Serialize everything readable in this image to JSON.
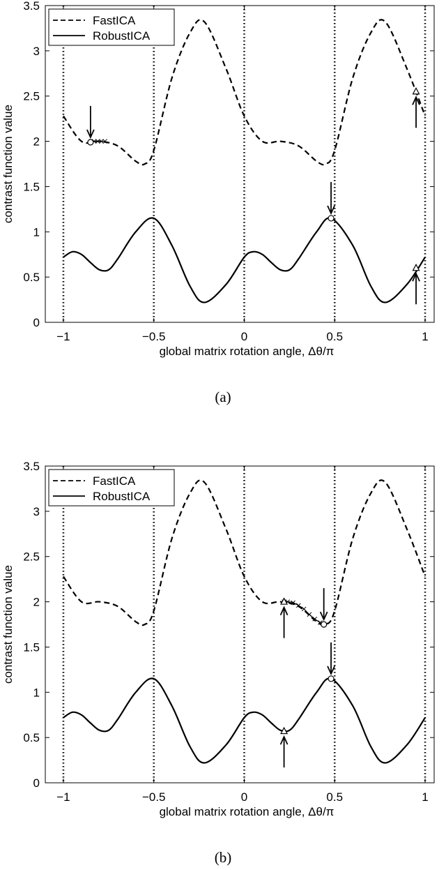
{
  "chart_data": [
    {
      "type": "line",
      "caption": "(a)",
      "xlabel": "global matrix rotation angle, Δθ/π",
      "ylabel": "contrast function value",
      "xlim": [
        -1.1,
        1.05
      ],
      "ylim": [
        0,
        3.5
      ],
      "xticks": [
        -1,
        -0.5,
        0,
        0.5,
        1
      ],
      "xtick_labels": [
        "−1",
        "−0.5",
        "0",
        "0.5",
        "1"
      ],
      "yticks": [
        0,
        0.5,
        1,
        1.5,
        2,
        2.5,
        3,
        3.5
      ],
      "ytick_labels": [
        "0",
        "0.5",
        "1",
        "1.5",
        "2",
        "2.5",
        "3",
        "3.5"
      ],
      "grid": "vertical dotted",
      "legend": "top-left",
      "series": [
        {
          "name": "FastICA",
          "style": "dashed",
          "x": [
            -1,
            -0.9,
            -0.8,
            -0.7,
            -0.6,
            -0.55,
            -0.5,
            -0.4,
            -0.3,
            -0.22,
            -0.1,
            0,
            0.1,
            0.2,
            0.3,
            0.4,
            0.45,
            0.5,
            0.6,
            0.7,
            0.78,
            0.9,
            1
          ],
          "values": [
            2.28,
            2.0,
            2.0,
            1.95,
            1.78,
            1.75,
            1.9,
            2.7,
            3.2,
            3.32,
            2.8,
            2.28,
            2.0,
            2.0,
            1.95,
            1.78,
            1.75,
            1.9,
            2.7,
            3.2,
            3.32,
            2.8,
            2.28
          ]
        },
        {
          "name": "RobustICA",
          "style": "solid",
          "x": [
            -1,
            -0.95,
            -0.9,
            -0.85,
            -0.8,
            -0.75,
            -0.7,
            -0.6,
            -0.5,
            -0.4,
            -0.3,
            -0.22,
            -0.1,
            0,
            0.05,
            0.1,
            0.15,
            0.2,
            0.25,
            0.3,
            0.4,
            0.48,
            0.6,
            0.7,
            0.78,
            0.9,
            1
          ],
          "values": [
            0.72,
            0.78,
            0.75,
            0.66,
            0.58,
            0.58,
            0.7,
            1.0,
            1.15,
            0.85,
            0.4,
            0.22,
            0.42,
            0.72,
            0.78,
            0.75,
            0.66,
            0.58,
            0.58,
            0.7,
            1.0,
            1.15,
            0.85,
            0.4,
            0.22,
            0.42,
            0.72
          ]
        }
      ],
      "annotations": [
        {
          "marker": "circle",
          "x": -0.85,
          "y": 1.99,
          "arrow": "down"
        },
        {
          "marker": "triangle",
          "x": 0.95,
          "y": 2.55,
          "arrow": "up"
        },
        {
          "marker": "circle",
          "x": 0.48,
          "y": 1.15,
          "arrow": "down"
        },
        {
          "marker": "triangle",
          "x": 0.95,
          "y": 0.6,
          "arrow": "up"
        }
      ],
      "traces": [
        {
          "marker": "x",
          "x": [
            -0.85,
            -0.83,
            -0.81,
            -0.79,
            -0.77
          ],
          "y": [
            1.99,
            2.0,
            2.0,
            2.0,
            2.0
          ]
        }
      ]
    },
    {
      "type": "line",
      "caption": "(b)",
      "xlabel": "global matrix rotation angle, Δθ/π",
      "ylabel": "contrast function value",
      "xlim": [
        -1.1,
        1.05
      ],
      "ylim": [
        0,
        3.5
      ],
      "xticks": [
        -1,
        -0.5,
        0,
        0.5,
        1
      ],
      "xtick_labels": [
        "−1",
        "−0.5",
        "0",
        "0.5",
        "1"
      ],
      "yticks": [
        0,
        0.5,
        1,
        1.5,
        2,
        2.5,
        3,
        3.5
      ],
      "ytick_labels": [
        "0",
        "0.5",
        "1",
        "1.5",
        "2",
        "2.5",
        "3",
        "3.5"
      ],
      "grid": "vertical dotted",
      "legend": "top-left",
      "series": [
        {
          "name": "FastICA",
          "style": "dashed",
          "x": [
            -1,
            -0.9,
            -0.8,
            -0.7,
            -0.6,
            -0.55,
            -0.5,
            -0.4,
            -0.3,
            -0.22,
            -0.1,
            0,
            0.1,
            0.2,
            0.3,
            0.4,
            0.45,
            0.5,
            0.6,
            0.7,
            0.78,
            0.9,
            1
          ],
          "values": [
            2.28,
            2.0,
            2.0,
            1.95,
            1.78,
            1.75,
            1.9,
            2.7,
            3.2,
            3.32,
            2.8,
            2.28,
            2.0,
            2.0,
            1.95,
            1.78,
            1.75,
            1.9,
            2.7,
            3.2,
            3.32,
            2.8,
            2.28
          ]
        },
        {
          "name": "RobustICA",
          "style": "solid",
          "x": [
            -1,
            -0.95,
            -0.9,
            -0.85,
            -0.8,
            -0.75,
            -0.7,
            -0.6,
            -0.5,
            -0.4,
            -0.3,
            -0.22,
            -0.1,
            0,
            0.05,
            0.1,
            0.15,
            0.2,
            0.25,
            0.3,
            0.4,
            0.48,
            0.6,
            0.7,
            0.78,
            0.9,
            1
          ],
          "values": [
            0.72,
            0.78,
            0.75,
            0.66,
            0.58,
            0.58,
            0.7,
            1.0,
            1.15,
            0.85,
            0.4,
            0.22,
            0.42,
            0.72,
            0.78,
            0.75,
            0.66,
            0.58,
            0.58,
            0.7,
            1.0,
            1.15,
            0.85,
            0.4,
            0.22,
            0.42,
            0.72
          ]
        }
      ],
      "annotations": [
        {
          "marker": "triangle",
          "x": 0.22,
          "y": 2.0,
          "arrow": "up"
        },
        {
          "marker": "circle",
          "x": 0.44,
          "y": 1.75,
          "arrow": "down"
        },
        {
          "marker": "circle",
          "x": 0.48,
          "y": 1.15,
          "arrow": "down"
        },
        {
          "marker": "triangle",
          "x": 0.22,
          "y": 0.57,
          "arrow": "up"
        }
      ],
      "traces": [
        {
          "marker": "x",
          "x": [
            0.22,
            0.24,
            0.27,
            0.3,
            0.33,
            0.36,
            0.39,
            0.42,
            0.44
          ],
          "y": [
            2.0,
            2.0,
            1.99,
            1.96,
            1.92,
            1.86,
            1.81,
            1.77,
            1.75
          ]
        }
      ]
    }
  ]
}
